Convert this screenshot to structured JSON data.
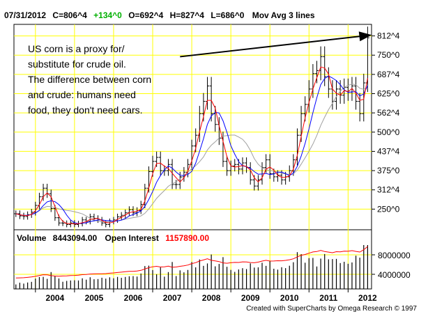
{
  "header": {
    "date": "07/31/2012",
    "close_label": "C=806^4",
    "change_label": "+134^0",
    "open_label": "O=692^4",
    "high_label": "H=827^4",
    "low_label": "L=686^0",
    "study_label": "Mov Avg 3 lines"
  },
  "annotation": {
    "lines": [
      "US corn is a proxy for/",
      "substitute for crude oil.",
      "The difference between corn",
      "and crude: humans need",
      "food, they don't need cars."
    ]
  },
  "volume_panel": {
    "volume_label": "Volume",
    "volume_value": "8443094.00",
    "oi_label": "Open Interest",
    "oi_value": "1157890.00",
    "tick_labels": [
      "8000000",
      "4000000"
    ]
  },
  "credit": "Created with SuperCharts by Omega Research © 1997",
  "colors": {
    "grid": "#ffff00",
    "price_bars": "#000000",
    "ma_fast": "#ff0000",
    "ma_mid": "#0000ff",
    "ma_slow": "#a0a0a0",
    "open_interest": "#ff0000",
    "up_change": "#00b000"
  },
  "chart_data": {
    "type": "line",
    "title": "",
    "price_axis": {
      "tick_labels": [
        "812^4",
        "750^0",
        "687^4",
        "625^0",
        "562^4",
        "500^0",
        "437^4",
        "375^0",
        "312^4",
        "250^0"
      ],
      "ylim": [
        187.5,
        850
      ]
    },
    "x_axis": {
      "tick_labels": [
        "2004",
        "2005",
        "2006",
        "2007",
        "2008",
        "2009",
        "2010",
        "2011",
        "2012"
      ]
    },
    "close_series": [
      {
        "t": 2003.5,
        "v": 235
      },
      {
        "t": 2003.6,
        "v": 228
      },
      {
        "t": 2003.7,
        "v": 226
      },
      {
        "t": 2003.8,
        "v": 232
      },
      {
        "t": 2003.9,
        "v": 240
      },
      {
        "t": 2004.0,
        "v": 262
      },
      {
        "t": 2004.1,
        "v": 290
      },
      {
        "t": 2004.2,
        "v": 318
      },
      {
        "t": 2004.3,
        "v": 300
      },
      {
        "t": 2004.4,
        "v": 252
      },
      {
        "t": 2004.5,
        "v": 222
      },
      {
        "t": 2004.6,
        "v": 205
      },
      {
        "t": 2004.7,
        "v": 204
      },
      {
        "t": 2004.8,
        "v": 200
      },
      {
        "t": 2004.9,
        "v": 205
      },
      {
        "t": 2005.0,
        "v": 200
      },
      {
        "t": 2005.1,
        "v": 203
      },
      {
        "t": 2005.2,
        "v": 215
      },
      {
        "t": 2005.3,
        "v": 210
      },
      {
        "t": 2005.4,
        "v": 225
      },
      {
        "t": 2005.5,
        "v": 220
      },
      {
        "t": 2005.6,
        "v": 215
      },
      {
        "t": 2005.7,
        "v": 205
      },
      {
        "t": 2005.8,
        "v": 200
      },
      {
        "t": 2005.9,
        "v": 210
      },
      {
        "t": 2006.0,
        "v": 215
      },
      {
        "t": 2006.1,
        "v": 225
      },
      {
        "t": 2006.2,
        "v": 230
      },
      {
        "t": 2006.3,
        "v": 238
      },
      {
        "t": 2006.4,
        "v": 248
      },
      {
        "t": 2006.5,
        "v": 238
      },
      {
        "t": 2006.6,
        "v": 245
      },
      {
        "t": 2006.7,
        "v": 265
      },
      {
        "t": 2006.8,
        "v": 318
      },
      {
        "t": 2006.9,
        "v": 372
      },
      {
        "t": 2007.0,
        "v": 405
      },
      {
        "t": 2007.1,
        "v": 418
      },
      {
        "t": 2007.2,
        "v": 375
      },
      {
        "t": 2007.3,
        "v": 375
      },
      {
        "t": 2007.4,
        "v": 395
      },
      {
        "t": 2007.5,
        "v": 330
      },
      {
        "t": 2007.6,
        "v": 330
      },
      {
        "t": 2007.7,
        "v": 355
      },
      {
        "t": 2007.8,
        "v": 370
      },
      {
        "t": 2007.9,
        "v": 395
      },
      {
        "t": 2008.0,
        "v": 455
      },
      {
        "t": 2008.1,
        "v": 490
      },
      {
        "t": 2008.2,
        "v": 560
      },
      {
        "t": 2008.3,
        "v": 600
      },
      {
        "t": 2008.4,
        "v": 650
      },
      {
        "t": 2008.5,
        "v": 560
      },
      {
        "t": 2008.6,
        "v": 525
      },
      {
        "t": 2008.7,
        "v": 480
      },
      {
        "t": 2008.8,
        "v": 405
      },
      {
        "t": 2008.9,
        "v": 375
      },
      {
        "t": 2009.0,
        "v": 390
      },
      {
        "t": 2009.1,
        "v": 395
      },
      {
        "t": 2009.2,
        "v": 380
      },
      {
        "t": 2009.3,
        "v": 400
      },
      {
        "t": 2009.4,
        "v": 385
      },
      {
        "t": 2009.5,
        "v": 345
      },
      {
        "t": 2009.6,
        "v": 325
      },
      {
        "t": 2009.7,
        "v": 345
      },
      {
        "t": 2009.8,
        "v": 385
      },
      {
        "t": 2009.9,
        "v": 410
      },
      {
        "t": 2010.0,
        "v": 365
      },
      {
        "t": 2010.1,
        "v": 355
      },
      {
        "t": 2010.2,
        "v": 360
      },
      {
        "t": 2010.3,
        "v": 345
      },
      {
        "t": 2010.4,
        "v": 355
      },
      {
        "t": 2010.5,
        "v": 375
      },
      {
        "t": 2010.6,
        "v": 410
      },
      {
        "t": 2010.7,
        "v": 490
      },
      {
        "t": 2010.8,
        "v": 560
      },
      {
        "t": 2010.9,
        "v": 590
      },
      {
        "t": 2011.0,
        "v": 640
      },
      {
        "t": 2011.1,
        "v": 690
      },
      {
        "t": 2011.2,
        "v": 700
      },
      {
        "t": 2011.3,
        "v": 745
      },
      {
        "t": 2011.4,
        "v": 680
      },
      {
        "t": 2011.5,
        "v": 640
      },
      {
        "t": 2011.6,
        "v": 600
      },
      {
        "t": 2011.7,
        "v": 640
      },
      {
        "t": 2011.8,
        "v": 620
      },
      {
        "t": 2011.9,
        "v": 645
      },
      {
        "t": 2012.0,
        "v": 630
      },
      {
        "t": 2012.1,
        "v": 650
      },
      {
        "t": 2012.2,
        "v": 600
      },
      {
        "t": 2012.3,
        "v": 560
      },
      {
        "t": 2012.4,
        "v": 660
      },
      {
        "t": 2012.5,
        "v": 806.5
      }
    ],
    "trendline": [
      {
        "t": 2007.7,
        "v": 745
      },
      {
        "t": 2012.5,
        "v": 812.5
      }
    ]
  }
}
